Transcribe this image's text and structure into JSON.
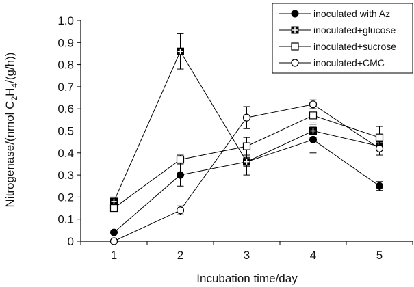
{
  "chart_data": {
    "type": "line",
    "x": [
      1,
      2,
      3,
      4,
      5
    ],
    "xlabel": "Incubation time/day",
    "ylabel_parts": [
      "Nitrogenase/(nmol C",
      "2",
      "H",
      "4",
      "/(g/h))"
    ],
    "xlim": [
      0.5,
      5.5
    ],
    "ylim": [
      0,
      1.0
    ],
    "xticks": [
      "1",
      "2",
      "3",
      "4",
      "5"
    ],
    "yticks": [
      "0",
      "0.1",
      "0.2",
      "0.3",
      "0.4",
      "0.5",
      "0.6",
      "0.7",
      "0.8",
      "0.9",
      "1.0"
    ],
    "grid": false,
    "legend_position": "top-right",
    "series": [
      {
        "name": "inoculated with Az",
        "marker": "filled-circle",
        "values": [
          0.04,
          0.3,
          0.36,
          0.46,
          0.25
        ],
        "errors": [
          0,
          0.05,
          0.06,
          0.06,
          0.02
        ]
      },
      {
        "name": "inoculated+glucose",
        "marker": "cross-square",
        "values": [
          0.18,
          0.86,
          0.36,
          0.5,
          0.43
        ],
        "errors": [
          0.02,
          0.08,
          0.02,
          0.03,
          0.02
        ]
      },
      {
        "name": "inoculated+sucrose",
        "marker": "open-square",
        "values": [
          0.15,
          0.37,
          0.43,
          0.57,
          0.47
        ],
        "errors": [
          0.01,
          0.02,
          0.04,
          0.03,
          0.05
        ]
      },
      {
        "name": "inoculated+CMC",
        "marker": "open-circle",
        "values": [
          0.0,
          0.14,
          0.56,
          0.62,
          0.42
        ],
        "errors": [
          0,
          0.02,
          0.05,
          0.02,
          0.03
        ]
      }
    ]
  }
}
